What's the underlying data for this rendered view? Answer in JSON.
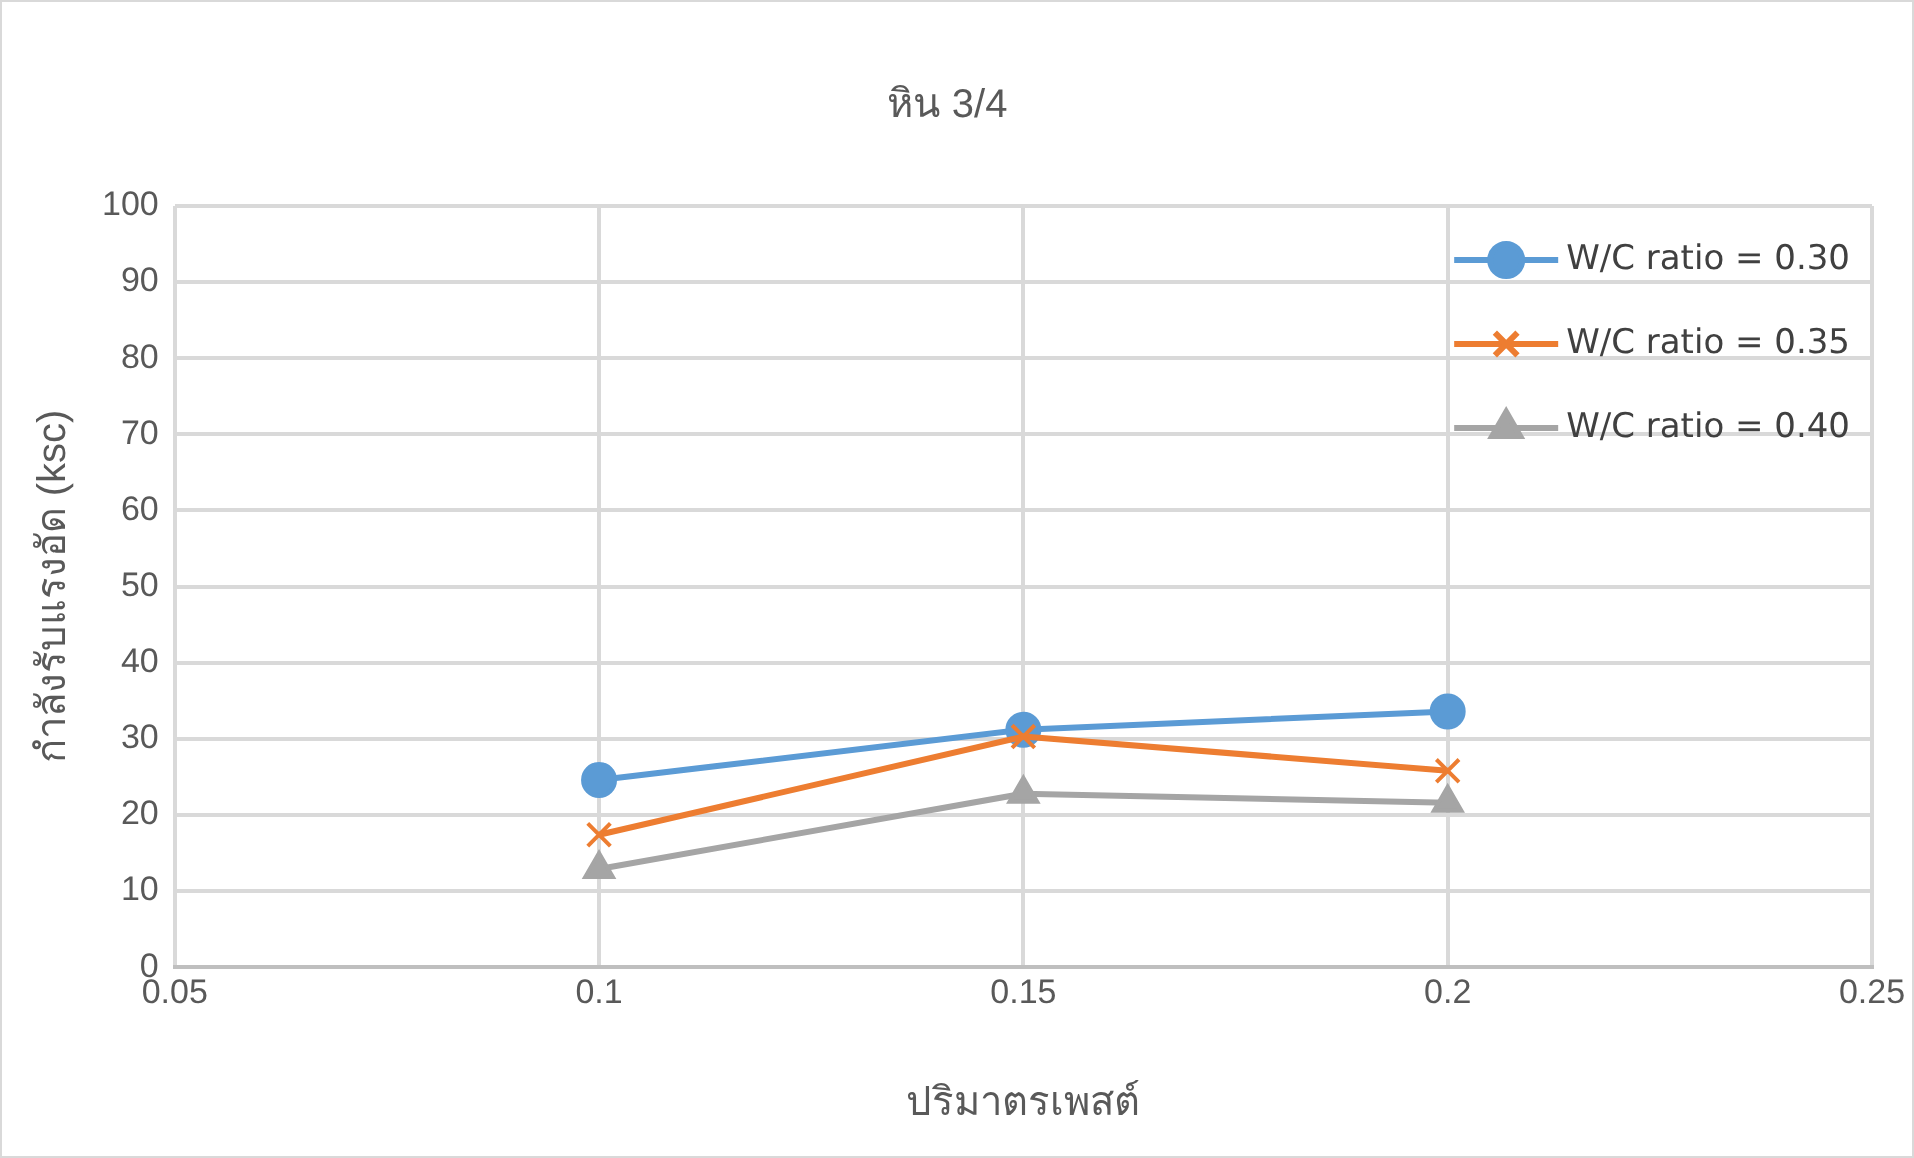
{
  "chart_data": {
    "type": "line",
    "title": "หิน 3/4",
    "xlabel": "ปริมาตรเพสต์",
    "ylabel": "กำลังรับแรงอัด (ksc)",
    "x": [
      0.1,
      0.15,
      0.2
    ],
    "series": [
      {
        "name": "W/C ratio = 0.30",
        "color": "#5b9bd5",
        "marker": "circle",
        "values": [
          24.6,
          31.2,
          33.6
        ]
      },
      {
        "name": "W/C ratio = 0.35",
        "color": "#ed7d31",
        "marker": "cross",
        "values": [
          17.4,
          30.3,
          25.8
        ]
      },
      {
        "name": "W/C ratio = 0.40",
        "color": "#a5a5a5",
        "marker": "triangle",
        "values": [
          12.9,
          22.8,
          21.6
        ]
      }
    ],
    "xlim": [
      0.05,
      0.25
    ],
    "xticks": [
      0.05,
      0.1,
      0.15,
      0.2,
      0.25
    ],
    "ylim": [
      0,
      100
    ],
    "yticks": [
      0,
      10,
      20,
      30,
      40,
      50,
      60,
      70,
      80,
      90,
      100
    ],
    "grid": true,
    "legend": "top right"
  }
}
